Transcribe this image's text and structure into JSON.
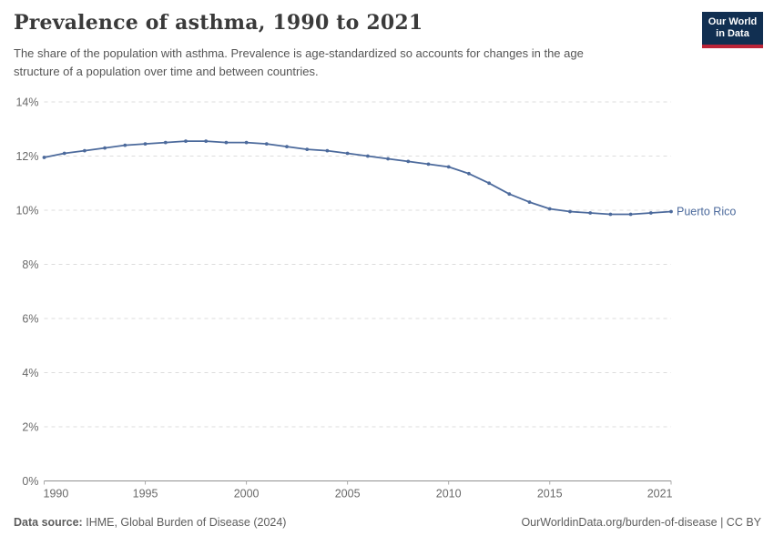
{
  "header": {
    "title": "Prevalence of asthma, 1990 to 2021",
    "subtitle_lines": [
      "The share of the population with asthma. Prevalence is age-standardized so accounts for changes in the age",
      "structure of a population over time and between countries."
    ],
    "logo": {
      "line1": "Our World",
      "line2": "in Data",
      "bg": "#112f51",
      "accent": "#bb2438"
    }
  },
  "chart_data": {
    "type": "line",
    "title": "Prevalence of asthma, 1990 to 2021",
    "x": [
      1990,
      1991,
      1992,
      1993,
      1994,
      1995,
      1996,
      1997,
      1998,
      1999,
      2000,
      2001,
      2002,
      2003,
      2004,
      2005,
      2006,
      2007,
      2008,
      2009,
      2010,
      2011,
      2012,
      2013,
      2014,
      2015,
      2016,
      2017,
      2018,
      2019,
      2020,
      2021
    ],
    "series": [
      {
        "name": "Puerto Rico",
        "color": "#4c6a9c",
        "values": [
          11.95,
          12.1,
          12.2,
          12.3,
          12.4,
          12.45,
          12.5,
          12.55,
          12.55,
          12.5,
          12.5,
          12.45,
          12.35,
          12.25,
          12.2,
          12.1,
          12.0,
          11.9,
          11.8,
          11.7,
          11.6,
          11.35,
          11.0,
          10.6,
          10.3,
          10.05,
          9.95,
          9.9,
          9.85,
          9.85,
          9.9,
          9.95
        ]
      }
    ],
    "xlabel": "",
    "ylabel": "",
    "ylim": [
      0,
      14
    ],
    "yticks": [
      0,
      2,
      4,
      6,
      8,
      10,
      12,
      14
    ],
    "ytick_suffix": "%",
    "xticks": [
      1990,
      1995,
      2000,
      2005,
      2010,
      2015,
      2021
    ],
    "grid": "horizontal-dashed",
    "legend_position": "end-of-line-label",
    "end_label": "Puerto Rico"
  },
  "footer": {
    "source_label": "Data source:",
    "source_text": "IHME, Global Burden of Disease (2024)",
    "credit_link": "OurWorldinData.org/burden-of-disease",
    "credit_suffix": " | CC BY"
  },
  "colors": {
    "line": "#4c6a9c",
    "gridline": "#dddddd",
    "axis": "#8f8f8f",
    "tick": "#ababab",
    "tick_label": "#696969",
    "title_text": "#3a3a3a",
    "subtitle_text": "#555555",
    "footer_text": "#5d5d5d"
  }
}
